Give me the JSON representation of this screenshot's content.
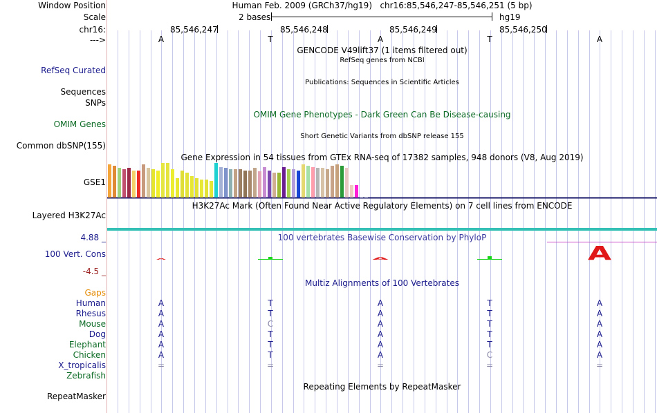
{
  "header": {
    "window_position_label": "Window Position",
    "window_position_value": "Human Feb. 2009 (GRCh37/hg19)   chr16:85,546,247-85,546,251 (5 bp)",
    "scale_label": "Scale",
    "scale_value": "2 bases",
    "scale_db": "hg19",
    "chrom_label": "chr16:",
    "strand_label": "--->",
    "positions": [
      "85,546,247",
      "85,546,248",
      "85,546,249",
      "85,546,250"
    ],
    "bases": [
      "A",
      "T",
      "A",
      "T",
      "A"
    ]
  },
  "tracks": {
    "gencode_title": "GENCODE V49lift37 (1 items filtered out)",
    "refseq_subtitle": "RefSeq genes from NCBI",
    "refseq_label": "RefSeq Curated",
    "publications_title": "Publications: Sequences in Scientific Articles",
    "sequences_label": "Sequences",
    "snps_label": "SNPs",
    "omim_title": "OMIM Gene Phenotypes - Dark Green Can Be Disease-causing",
    "omim_label": "OMIM Genes",
    "dbsnp_title": "Short Genetic Variants from dbSNP release 155",
    "dbsnp_label": "Common dbSNP(155)",
    "gtex_title": "Gene Expression in 54 tissues from GTEx RNA-seq of 17382 samples, 948 donors (V8, Aug 2019)",
    "gtex_label": "GSE1",
    "h3k27ac_title": "H3K27Ac Mark (Often Found Near Active Regulatory Elements) on 7 cell lines from ENCODE",
    "h3k27ac_label": "Layered H3K27Ac",
    "phylop_title": "100 vertebrates Basewise Conservation by PhyloP",
    "phylop_label": "100 Vert. Cons",
    "phylop_max": "4.88 _",
    "phylop_min": "-4.5 _",
    "multiz_title": "Multiz Alignments of 100 Vertebrates",
    "gaps_label": "Gaps",
    "repeatmasker_title": "Repeating Elements by RepeatMasker",
    "repeatmasker_label": "RepeatMasker"
  },
  "phylop_letters": [
    "A",
    "T",
    "A",
    "T",
    "A"
  ],
  "alignment": [
    {
      "species": "Human",
      "bases": [
        "A",
        "T",
        "A",
        "T",
        "A"
      ]
    },
    {
      "species": "Rhesus",
      "bases": [
        "A",
        "T",
        "A",
        "T",
        "A"
      ]
    },
    {
      "species": "Mouse",
      "bases": [
        "A",
        "C",
        "A",
        "T",
        "A"
      ]
    },
    {
      "species": "Dog",
      "bases": [
        "A",
        "T",
        "A",
        "T",
        "A"
      ]
    },
    {
      "species": "Elephant",
      "bases": [
        "A",
        "T",
        "A",
        "T",
        "A"
      ]
    },
    {
      "species": "Chicken",
      "bases": [
        "A",
        "T",
        "A",
        "C",
        "A"
      ]
    },
    {
      "species": "X_tropicalis",
      "bases": [
        "=",
        "=",
        "=",
        "=",
        "="
      ]
    },
    {
      "species": "Zebrafish",
      "bases": [
        "",
        "",
        "",
        "",
        ""
      ]
    }
  ],
  "gtex": {
    "values": [
      0.95,
      0.92,
      0.85,
      0.82,
      0.85,
      0.78,
      0.78,
      0.95,
      0.85,
      0.82,
      0.78,
      1.0,
      1.0,
      0.82,
      0.55,
      0.78,
      0.72,
      0.62,
      0.55,
      0.52,
      0.52,
      0.48,
      1.0,
      0.88,
      0.85,
      0.82,
      0.82,
      0.82,
      0.78,
      0.78,
      0.85,
      0.75,
      0.88,
      0.78,
      0.72,
      0.72,
      0.88,
      0.82,
      0.82,
      0.78,
      0.95,
      0.92,
      0.88,
      0.85,
      0.85,
      0.82,
      0.92,
      0.95,
      0.92,
      0.85,
      0.35,
      0.35,
      0.32,
      0.3
    ],
    "colors": [
      "#f5a63a",
      "#e08a35",
      "#a0d27b",
      "#c0506d",
      "#9c2b48",
      "#f5d16a",
      "#ef2d27",
      "#c79a7d",
      "#d9c6a1",
      "#e5e52b",
      "#f0ee28",
      "#e6e640",
      "#e4e43c",
      "#ecec30",
      "#e8e830",
      "#dede37",
      "#e2e23a",
      "#e6e634",
      "#e2e236",
      "#e8e838",
      "#e2e238",
      "#e6e634",
      "#1fd1d1",
      "#a5b0d6",
      "#7d93c9",
      "#8fb0b0",
      "#c2a083",
      "#9d7f61",
      "#8f7555",
      "#a8886a",
      "#c1a68b",
      "#e2a4b6",
      "#c78bd1",
      "#7d48b0",
      "#d0ae91",
      "#9ab836",
      "#6a1e90",
      "#a9cf50",
      "#b39ddb",
      "#1a46d6",
      "#e6d870",
      "#a5e0a8",
      "#ff9ead",
      "#b5b5b5",
      "#d7c1a7",
      "#c6a78a",
      "#c9a388",
      "#c69f7b",
      "#2a9b38",
      "#e6c7c2",
      "#eccbc0",
      "#ff1fd6",
      "#ffffff",
      "#ffffff"
    ]
  },
  "colors": {
    "grid_line": "#c8c8ea",
    "left_rule": "#e2b0b0",
    "navy_label": "#1a1a8c",
    "omim_green": "#0b6a24",
    "gaps_orange": "#e48a00",
    "phylop_red": "#e01818",
    "phylop_green": "#19d419",
    "h3k27ac_teal": "#34c0b4",
    "magenta_rule": "#c846c8",
    "alt_base_gray": "#8a8aa8"
  }
}
